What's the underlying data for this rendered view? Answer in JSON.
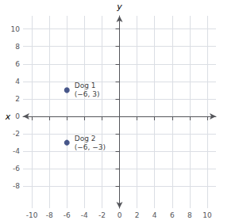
{
  "chart_data": {
    "type": "scatter",
    "x_label": "x",
    "y_label": "y",
    "x": [
      -6,
      -6
    ],
    "values": [
      3,
      -3
    ],
    "labels": [
      "Dog 1\n(−6, 3)",
      "Dog 2\n(−6, −3)"
    ],
    "color": "#1b2e6e",
    "xlim": [
      -11,
      11
    ],
    "ylim": [
      -10.5,
      11.5
    ],
    "xticks": [
      -10,
      -8,
      -6,
      -4,
      -2,
      0,
      2,
      4,
      6,
      8,
      10
    ],
    "yticks": [
      -8,
      -6,
      -4,
      -2,
      0,
      2,
      4,
      6,
      8,
      10
    ],
    "grid": true
  }
}
